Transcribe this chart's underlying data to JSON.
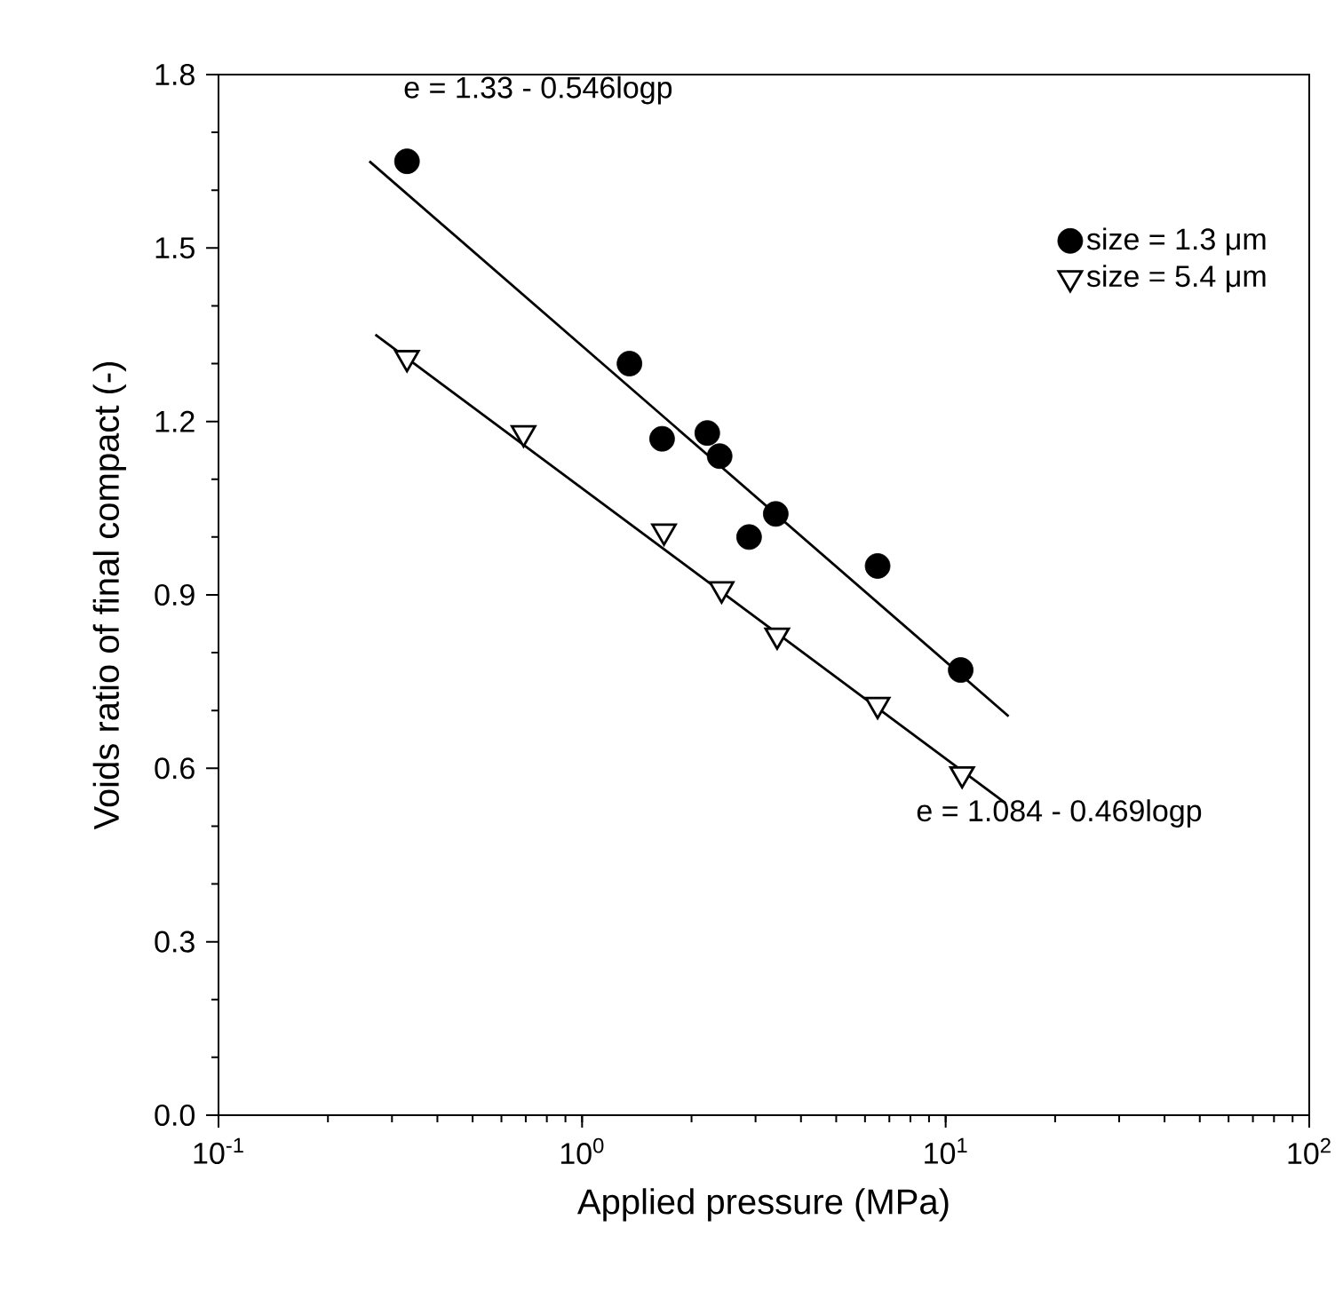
{
  "chart_data": {
    "type": "scatter",
    "xlabel": "Applied pressure (MPa)",
    "ylabel": "Voids ratio of final compact (-)",
    "log": "x",
    "xlim": [
      0.1,
      100
    ],
    "ylim": [
      0,
      1.8
    ],
    "xticks": [
      {
        "value": 0.1,
        "label": "10$^{-1}$"
      },
      {
        "value": 1,
        "label": "10$^{0}$"
      },
      {
        "value": 10,
        "label": "10$^{1}$"
      },
      {
        "value": 100,
        "label": "10$^{2}$"
      }
    ],
    "yticks": [
      {
        "value": 0,
        "label": "0.0"
      },
      {
        "value": 0.3,
        "label": "0.3"
      },
      {
        "value": 0.6,
        "label": "0.6"
      },
      {
        "value": 0.9,
        "label": "0.9"
      },
      {
        "value": 1.2,
        "label": "1.2"
      },
      {
        "value": 1.5,
        "label": "1.5"
      },
      {
        "value": 1.8,
        "label": "1.8"
      }
    ],
    "grid": false,
    "legend": "top right",
    "series": [
      {
        "name": "size = 1.3 μm",
        "color": "#000000",
        "marker": "circle",
        "x": [
          0.33,
          1.35,
          1.66,
          2.21,
          2.39,
          3.41,
          2.88,
          6.5,
          11.0
        ],
        "values": [
          1.65,
          1.3,
          1.17,
          1.18,
          1.14,
          1.04,
          1.0,
          0.95,
          0.77
        ]
      },
      {
        "name": "size = 5.4 μm",
        "color": "#ffffff",
        "marker": "triangle",
        "x": [
          0.33,
          0.69,
          1.68,
          2.42,
          3.44,
          6.5,
          11.1
        ],
        "values": [
          1.31,
          1.18,
          1.01,
          0.91,
          0.83,
          0.71,
          0.59
        ]
      },
      {
        "type": "line",
        "color": "#000000",
        "x": [
          0.26,
          14.9
        ],
        "values": [
          1.65,
          0.69
        ]
      },
      {
        "type": "line",
        "color": "#000000",
        "x": [
          0.27,
          14.6
        ],
        "values": [
          1.35,
          0.54
        ]
      }
    ],
    "annotations": [
      "e = 1.33 - 0.546logp",
      "e = 1.084 - 0.469logp"
    ]
  }
}
